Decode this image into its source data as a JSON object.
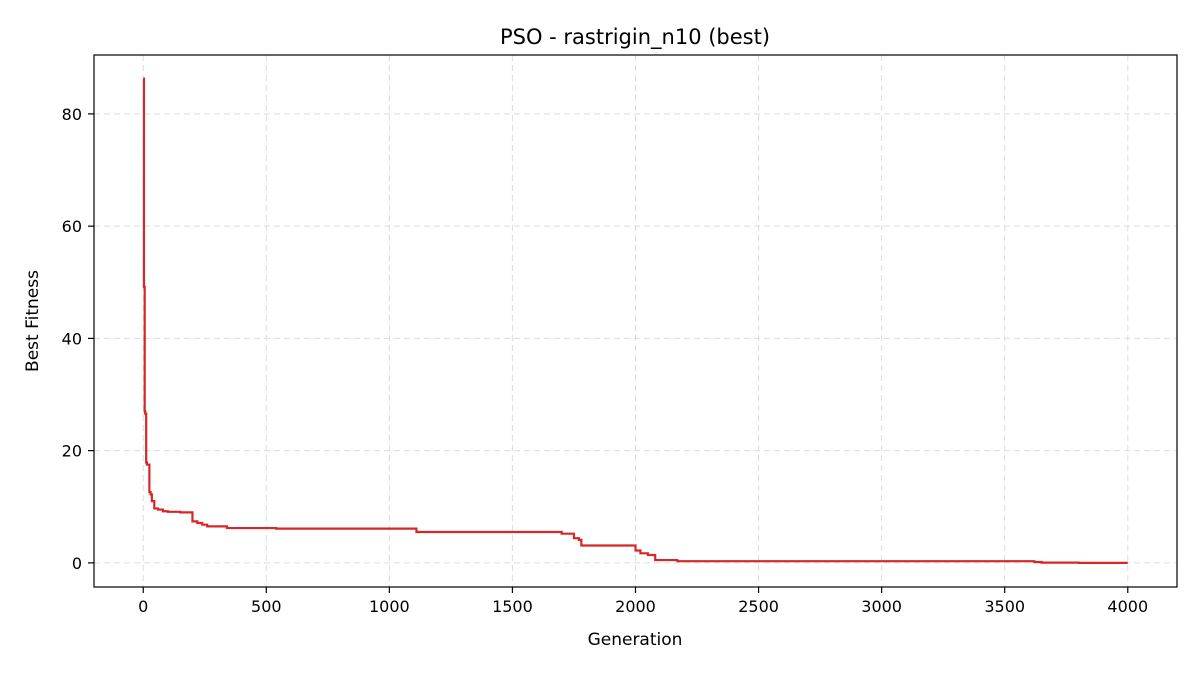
{
  "chart_data": {
    "type": "line",
    "title": "PSO - rastrigin_n10 (best)",
    "xlabel": "Generation",
    "ylabel": "Best Fitness",
    "xlim": [
      -200,
      4200
    ],
    "ylim": [
      -4.3,
      90.5
    ],
    "xticks": [
      0,
      500,
      1000,
      1500,
      2000,
      2500,
      3000,
      3500,
      4000
    ],
    "yticks": [
      0,
      20,
      40,
      60,
      80
    ],
    "grid": true,
    "line_color": "#d62728",
    "series": [
      {
        "step": true,
        "x": [
          0,
          3,
          6,
          8,
          12,
          15,
          25,
          30,
          35,
          45,
          60,
          80,
          100,
          150,
          200,
          220,
          240,
          260,
          340,
          540,
          1110,
          1700,
          1750,
          1770,
          1780,
          2000,
          2020,
          2050,
          2080,
          2170,
          3620,
          3650,
          3800,
          4000
        ],
        "y": [
          86.3,
          49.2,
          27.0,
          26.6,
          17.9,
          17.5,
          12.6,
          12.2,
          11.0,
          9.7,
          9.5,
          9.2,
          9.1,
          9.0,
          7.4,
          7.1,
          6.8,
          6.5,
          6.2,
          6.1,
          5.5,
          5.2,
          4.4,
          4.1,
          3.1,
          2.2,
          1.7,
          1.4,
          0.5,
          0.3,
          0.15,
          0.05,
          0.0,
          0.0
        ]
      }
    ]
  }
}
